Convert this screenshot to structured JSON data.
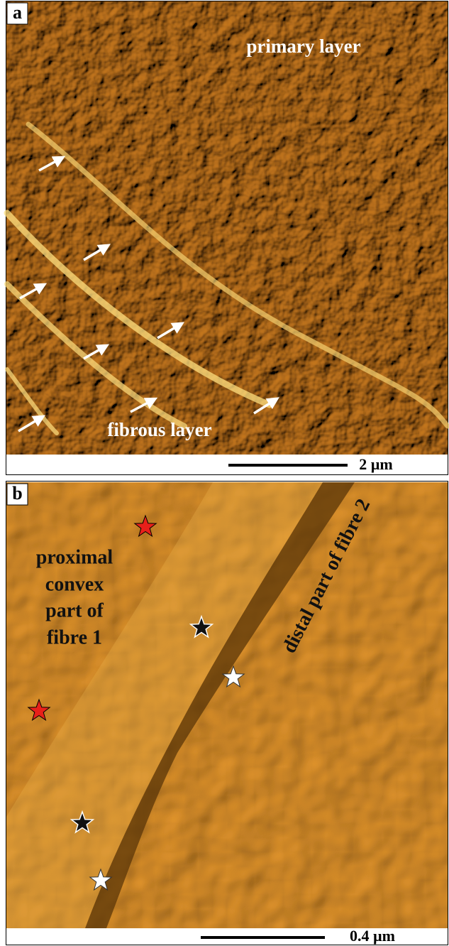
{
  "panels": [
    {
      "label": "a",
      "annotations": [
        "primary layer",
        "fibrous layer"
      ],
      "scale_bar": "2 µm"
    },
    {
      "label": "b",
      "annotations": {
        "fibre_1": [
          "proximal",
          "convex",
          "part of",
          "fibre 1"
        ],
        "fibre_2": "distal part of fibre 2"
      },
      "scale_bar": "0.4 µm"
    }
  ]
}
